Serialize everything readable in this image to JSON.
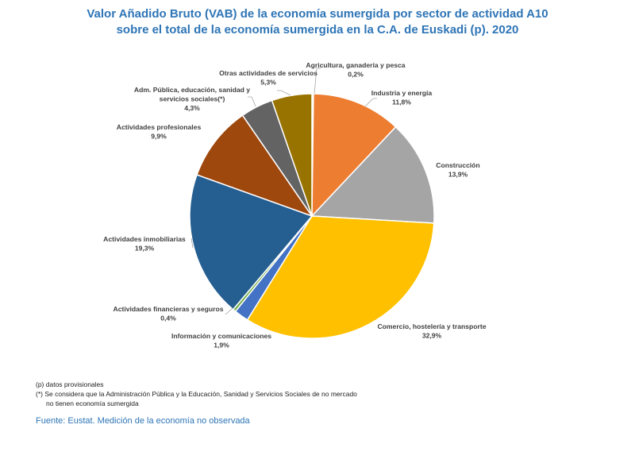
{
  "chart_data": {
    "type": "pie",
    "title": [
      "Valor Añadido Bruto (VAB) de la economía sumergida por sector de actividad A10",
      "sobre el total de la economía sumergida en la C.A. de Euskadi (p). 2020"
    ],
    "start": "top, clockwise",
    "slices": [
      {
        "label": [
          "Agricultura, ganadería y pesca"
        ],
        "value": 0.2,
        "text": "0,2%",
        "color": "#F2F2F2"
      },
      {
        "label": [
          "Industria y energía"
        ],
        "value": 11.8,
        "text": "11,8%",
        "color": "#ED7D31"
      },
      {
        "label": [
          "Construcción"
        ],
        "value": 13.9,
        "text": "13,9%",
        "color": "#A5A5A5"
      },
      {
        "label": [
          "Comercio, hostelería y transporte"
        ],
        "value": 32.9,
        "text": "32,9%",
        "color": "#FFC000"
      },
      {
        "label": [
          "Información y comunicaciones"
        ],
        "value": 1.9,
        "text": "1,9%",
        "color": "#4472C4"
      },
      {
        "label": [
          "Actividades financieras y seguros"
        ],
        "value": 0.4,
        "text": "0,4%",
        "color": "#70AD47"
      },
      {
        "label": [
          "Actividades inmobiliarias"
        ],
        "value": 19.3,
        "text": "19,3%",
        "color": "#255E91"
      },
      {
        "label": [
          "Actividades profesionales"
        ],
        "value": 9.9,
        "text": "9,9%",
        "color": "#9E480E"
      },
      {
        "label": [
          "Adm. Pública, educación, sanidad y",
          "servicios sociales(*)"
        ],
        "value": 4.3,
        "text": "4,3%",
        "color": "#636363"
      },
      {
        "label": [
          "Otras actividades de servicios"
        ],
        "value": 5.3,
        "text": "5,3%",
        "color": "#997300"
      }
    ]
  },
  "notes": {
    "provisional": "(p) datos provisionales",
    "asterisk_1": "(*) Se considera que la Administración Pública y la Educación, Sanidad y Servicios Sociales de no mercado",
    "asterisk_2": "no tienen economía sumergida"
  },
  "source": "Fuente: Eustat. Medición de la economía no observada"
}
